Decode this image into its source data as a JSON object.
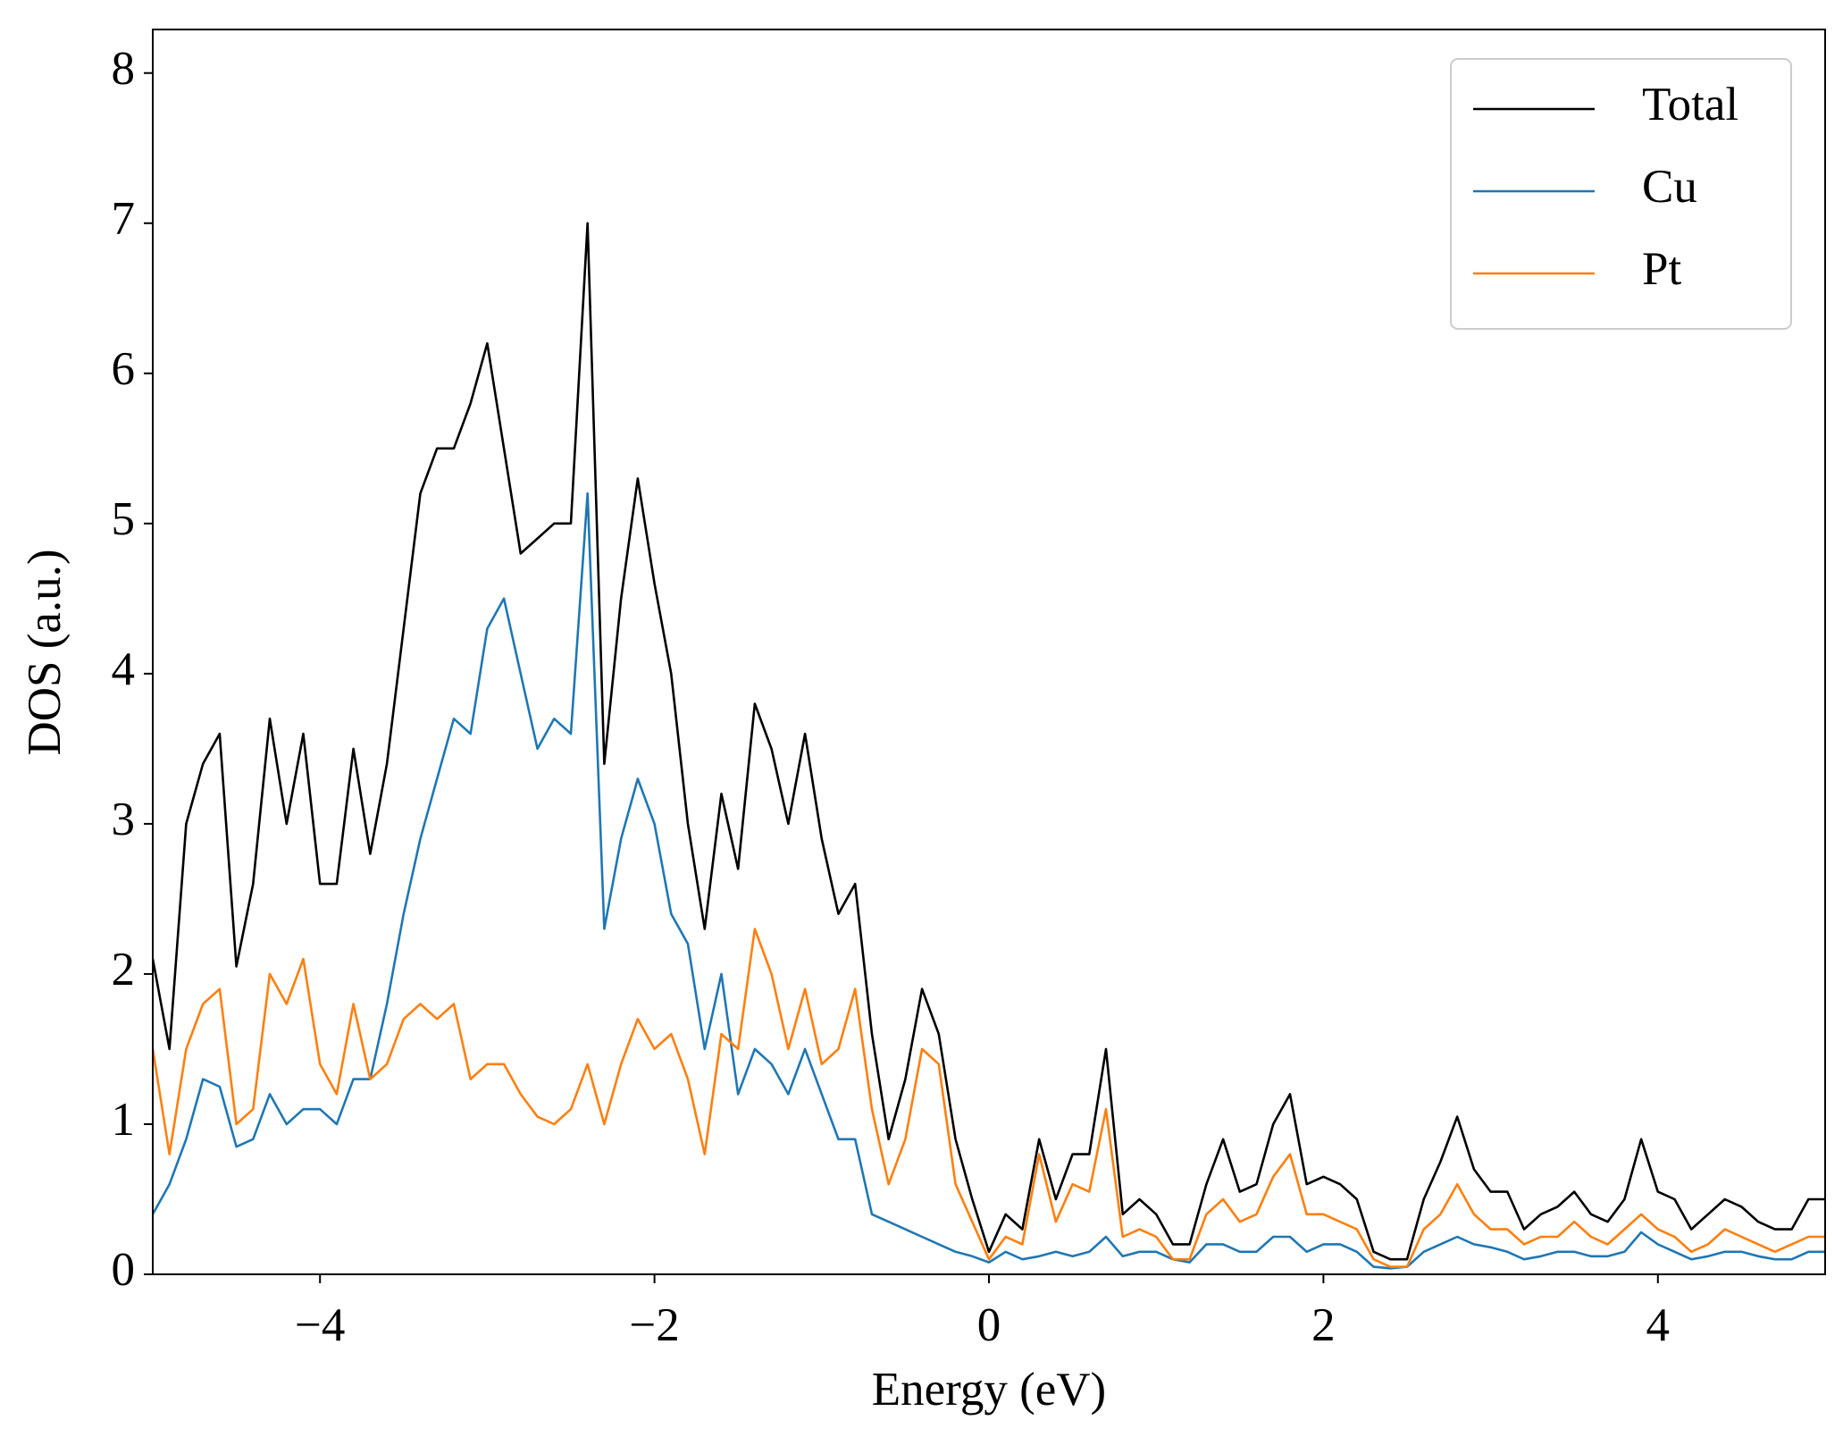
{
  "chart_data": {
    "type": "line",
    "xlabel": "Energy (eV)",
    "ylabel": "DOS (a.u.)",
    "xlim": [
      -5,
      5
    ],
    "ylim": [
      0,
      8.29
    ],
    "xticks": [
      {
        "value": -4,
        "label": "−4"
      },
      {
        "value": -2,
        "label": "−2"
      },
      0,
      2,
      4
    ],
    "yticks": [
      0,
      1,
      2,
      3,
      4,
      5,
      6,
      7,
      8
    ],
    "legend": "upper right",
    "x": [
      -5.0,
      -4.9,
      -4.8,
      -4.7,
      -4.6,
      -4.5,
      -4.4,
      -4.3,
      -4.2,
      -4.1,
      -4.0,
      -3.9,
      -3.8,
      -3.7,
      -3.6,
      -3.5,
      -3.4,
      -3.3,
      -3.2,
      -3.1,
      -3.0,
      -2.9,
      -2.8,
      -2.7,
      -2.6,
      -2.5,
      -2.4,
      -2.3,
      -2.2,
      -2.1,
      -2.0,
      -1.9,
      -1.8,
      -1.7,
      -1.6,
      -1.5,
      -1.4,
      -1.3,
      -1.2,
      -1.1,
      -1.0,
      -0.9,
      -0.8,
      -0.7,
      -0.6,
      -0.5,
      -0.4,
      -0.3,
      -0.2,
      -0.1,
      0.0,
      0.1,
      0.2,
      0.3,
      0.4,
      0.5,
      0.6,
      0.7,
      0.8,
      0.9,
      1.0,
      1.1,
      1.2,
      1.3,
      1.4,
      1.5,
      1.6,
      1.7,
      1.8,
      1.9,
      2.0,
      2.1,
      2.2,
      2.3,
      2.4,
      2.5,
      2.6,
      2.7,
      2.8,
      2.9,
      3.0,
      3.1,
      3.2,
      3.3,
      3.4,
      3.5,
      3.6,
      3.7,
      3.8,
      3.9,
      4.0,
      4.1,
      4.2,
      4.3,
      4.4,
      4.5,
      4.6,
      4.7,
      4.8,
      4.9,
      5.0
    ],
    "series": [
      {
        "name": "Total",
        "color": "#000000",
        "values": [
          2.1,
          1.5,
          3.0,
          3.4,
          3.6,
          2.05,
          2.6,
          3.7,
          3.0,
          3.6,
          2.6,
          2.6,
          3.5,
          2.8,
          3.4,
          4.3,
          5.2,
          5.5,
          5.5,
          5.8,
          6.2,
          5.5,
          4.8,
          4.9,
          5.0,
          5.0,
          7.0,
          3.4,
          4.5,
          5.3,
          4.6,
          4.0,
          3.0,
          2.3,
          3.2,
          2.7,
          3.8,
          3.5,
          3.0,
          3.6,
          2.9,
          2.4,
          2.6,
          1.6,
          0.9,
          1.3,
          1.9,
          1.6,
          0.9,
          0.5,
          0.15,
          0.4,
          0.3,
          0.9,
          0.5,
          0.8,
          0.8,
          1.5,
          0.4,
          0.5,
          0.4,
          0.2,
          0.2,
          0.6,
          0.9,
          0.55,
          0.6,
          1.0,
          1.2,
          0.6,
          0.65,
          0.6,
          0.5,
          0.15,
          0.1,
          0.1,
          0.5,
          0.75,
          1.05,
          0.7,
          0.55,
          0.55,
          0.3,
          0.4,
          0.45,
          0.55,
          0.4,
          0.35,
          0.5,
          0.9,
          0.55,
          0.5,
          0.3,
          0.4,
          0.5,
          0.45,
          0.35,
          0.3,
          0.3,
          0.5,
          0.5
        ]
      },
      {
        "name": "Cu",
        "color": "#1f77b4",
        "values": [
          0.4,
          0.6,
          0.9,
          1.3,
          1.25,
          0.85,
          0.9,
          1.2,
          1.0,
          1.1,
          1.1,
          1.0,
          1.3,
          1.3,
          1.8,
          2.4,
          2.9,
          3.3,
          3.7,
          3.6,
          4.3,
          4.5,
          4.0,
          3.5,
          3.7,
          3.6,
          5.2,
          2.3,
          2.9,
          3.3,
          3.0,
          2.4,
          2.2,
          1.5,
          2.0,
          1.2,
          1.5,
          1.4,
          1.2,
          1.5,
          1.2,
          0.9,
          0.9,
          0.4,
          0.35,
          0.3,
          0.25,
          0.2,
          0.15,
          0.12,
          0.08,
          0.15,
          0.1,
          0.12,
          0.15,
          0.12,
          0.15,
          0.25,
          0.12,
          0.15,
          0.15,
          0.1,
          0.08,
          0.2,
          0.2,
          0.15,
          0.15,
          0.25,
          0.25,
          0.15,
          0.2,
          0.2,
          0.15,
          0.05,
          0.04,
          0.05,
          0.15,
          0.2,
          0.25,
          0.2,
          0.18,
          0.15,
          0.1,
          0.12,
          0.15,
          0.15,
          0.12,
          0.12,
          0.15,
          0.28,
          0.2,
          0.15,
          0.1,
          0.12,
          0.15,
          0.15,
          0.12,
          0.1,
          0.1,
          0.15,
          0.15
        ]
      },
      {
        "name": "Pt",
        "color": "#ff7f0e",
        "values": [
          1.5,
          0.8,
          1.5,
          1.8,
          1.9,
          1.0,
          1.1,
          2.0,
          1.8,
          2.1,
          1.4,
          1.2,
          1.8,
          1.3,
          1.4,
          1.7,
          1.8,
          1.7,
          1.8,
          1.3,
          1.4,
          1.4,
          1.2,
          1.05,
          1.0,
          1.1,
          1.4,
          1.0,
          1.4,
          1.7,
          1.5,
          1.6,
          1.3,
          0.8,
          1.6,
          1.5,
          2.3,
          2.0,
          1.5,
          1.9,
          1.4,
          1.5,
          1.9,
          1.1,
          0.6,
          0.9,
          1.5,
          1.4,
          0.6,
          0.35,
          0.1,
          0.25,
          0.2,
          0.8,
          0.35,
          0.6,
          0.55,
          1.1,
          0.25,
          0.3,
          0.25,
          0.1,
          0.1,
          0.4,
          0.5,
          0.35,
          0.4,
          0.65,
          0.8,
          0.4,
          0.4,
          0.35,
          0.3,
          0.1,
          0.05,
          0.05,
          0.3,
          0.4,
          0.6,
          0.4,
          0.3,
          0.3,
          0.2,
          0.25,
          0.25,
          0.35,
          0.25,
          0.2,
          0.3,
          0.4,
          0.3,
          0.25,
          0.15,
          0.2,
          0.3,
          0.25,
          0.2,
          0.15,
          0.2,
          0.25,
          0.25
        ]
      }
    ]
  }
}
